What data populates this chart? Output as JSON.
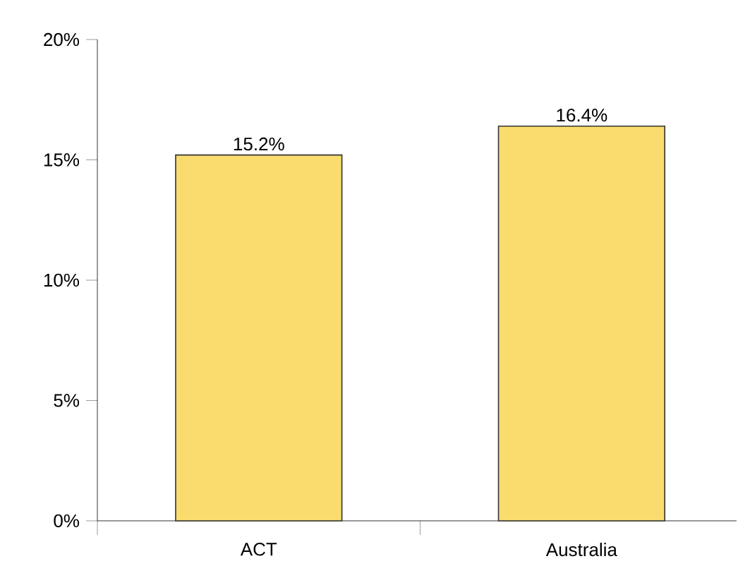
{
  "chart_data": {
    "type": "bar",
    "categories": [
      "ACT",
      "Australia"
    ],
    "values": [
      15.2,
      16.4
    ],
    "value_labels": [
      "15.2%",
      "16.4%"
    ],
    "color": "#fadc6e",
    "ylim": [
      0,
      20
    ],
    "yticks": [
      {
        "value": 0,
        "label": "0%"
      },
      {
        "value": 5,
        "label": "5%"
      },
      {
        "value": 10,
        "label": "10%"
      },
      {
        "value": 15,
        "label": "15%"
      },
      {
        "value": 20,
        "label": "20%"
      }
    ],
    "grid": false
  }
}
